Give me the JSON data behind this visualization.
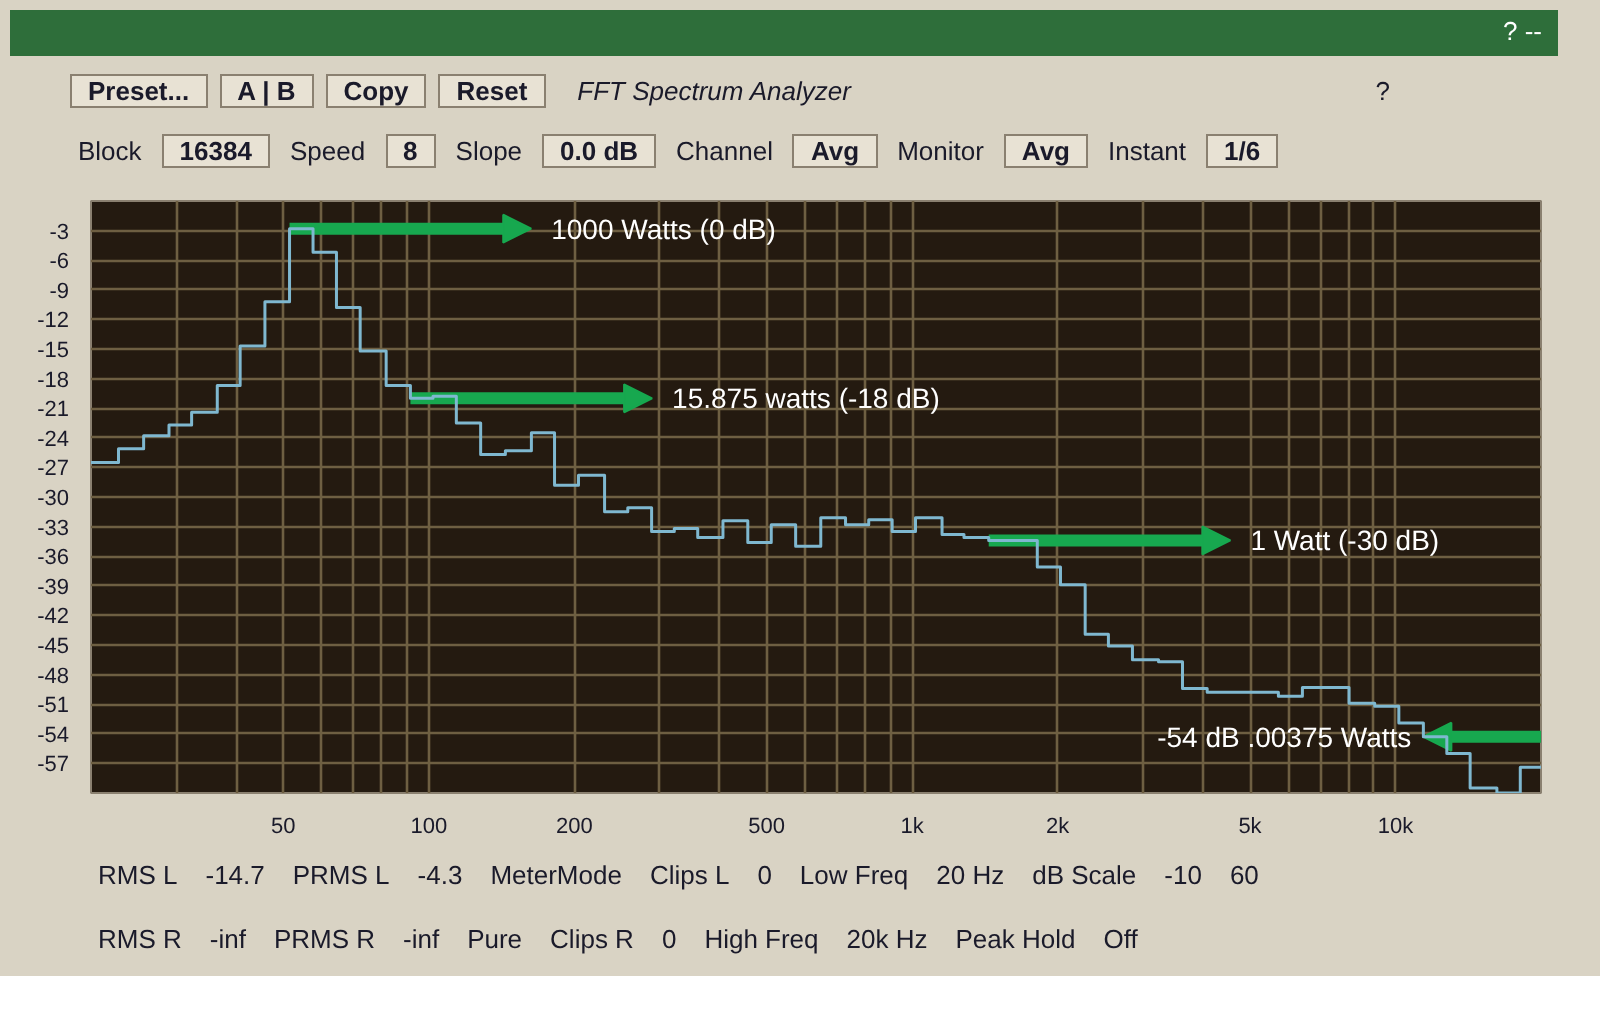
{
  "chart_data": {
    "type": "step",
    "title": "FFT Spectrum Analyzer",
    "x": [
      20,
      22.8,
      25.7,
      29,
      32.3,
      36.5,
      40.7,
      45.8,
      51.5,
      57.6,
      64.4,
      72.1,
      81.6,
      91.6,
      102,
      114,
      128,
      144,
      163,
      182,
      204,
      231,
      258,
      289,
      322,
      360,
      406,
      457,
      511,
      574,
      647,
      728,
      813,
      909,
      1016,
      1153,
      1280,
      1440,
      1815,
      2027,
      2280,
      2547,
      2856,
      3234,
      3625,
      4077,
      5724,
      6418,
      8014,
      9057,
      10160,
      11420,
      12770,
      14270,
      16210,
      18120,
      20000
    ],
    "values": [
      -26.5,
      -25.1,
      -23.8,
      -22.7,
      -21.4,
      -18.7,
      -14.7,
      -10.2,
      -2.8,
      -5.2,
      -10.8,
      -15.2,
      -18.7,
      -20,
      -19.8,
      -22.5,
      -25.7,
      -25.3,
      -23.5,
      -28.8,
      -27.8,
      -31.5,
      -31.1,
      -33.5,
      -33.2,
      -34.1,
      -32.4,
      -34.6,
      -32.8,
      -35,
      -32.1,
      -32.8,
      -32.3,
      -33.5,
      -32.1,
      -33.8,
      -34.1,
      -34.4,
      -37.1,
      -38.9,
      -43.9,
      -45.1,
      -46.5,
      -46.7,
      -49.4,
      -49.8,
      -50.2,
      -49.3,
      -50.9,
      -51.2,
      -52.9,
      -54.3,
      -56,
      -59.5,
      -60,
      -57.4,
      -57.4
    ],
    "color": "#7fb8d0",
    "xlim": [
      20,
      20000
    ],
    "ylim": [
      -60,
      0
    ],
    "log": "x",
    "grid": true,
    "xticks": [
      {
        "value": 20,
        "label": null
      },
      {
        "value": 30,
        "label": null
      },
      {
        "value": 40,
        "label": null
      },
      50,
      {
        "value": 60,
        "label": null
      },
      {
        "value": 70,
        "label": null
      },
      {
        "value": 80,
        "label": null
      },
      {
        "value": 90,
        "label": null
      },
      100,
      200,
      {
        "value": 300,
        "label": null
      },
      {
        "value": 400,
        "label": null
      },
      500,
      {
        "value": 600,
        "label": null
      },
      {
        "value": 700,
        "label": null
      },
      {
        "value": 800,
        "label": null
      },
      {
        "value": 900,
        "label": null
      },
      {
        "value": 1000,
        "label": "1k"
      },
      {
        "value": 2000,
        "label": "2k"
      },
      {
        "value": 3000,
        "label": null
      },
      {
        "value": 4000,
        "label": null
      },
      {
        "value": 5000,
        "label": "5k"
      },
      {
        "value": 6000,
        "label": null
      },
      {
        "value": 7000,
        "label": null
      },
      {
        "value": 8000,
        "label": null
      },
      {
        "value": 9000,
        "label": null
      },
      {
        "value": 10000,
        "label": "10k"
      }
    ],
    "yticks": [
      -3,
      -6,
      -9,
      -12,
      -15,
      -18,
      -21,
      -24,
      -27,
      -30,
      -33,
      -36,
      -39,
      -42,
      -45,
      -48,
      -51,
      -54,
      -57
    ],
    "annotations": [
      {
        "text": "1000 Watts (0 dB)",
        "x": 51.5,
        "y": -2.8
      },
      {
        "text": "15.875 watts (-18 dB)",
        "x": 91.6,
        "y": -20
      },
      {
        "text": "1 Watt (-30 dB)",
        "x": 1440,
        "y": -34.4
      },
      {
        "text": "-54 dB .00375 Watts",
        "x": 11420,
        "y": -54.3
      },
      "?",
      "--",
      "Preset...",
      "A | B",
      "Copy",
      "Reset",
      "?",
      "Block",
      "16384",
      "Speed",
      "8",
      "Slope",
      "0.0 dB",
      "Channel",
      "Avg",
      "Monitor",
      "Avg",
      "Instant",
      "1/6",
      "RMS L",
      "-14.7",
      "PRMS L",
      "-4.3",
      "MeterMode",
      "Clips L",
      "0",
      "Low Freq",
      "20 Hz",
      "dB Scale",
      "-10",
      "60",
      "RMS R",
      "-inf",
      "PRMS R",
      "-inf",
      "Pure",
      "Clips R",
      "0",
      "High Freq",
      "20k Hz",
      "Peak Hold",
      "Off"
    ]
  }
}
